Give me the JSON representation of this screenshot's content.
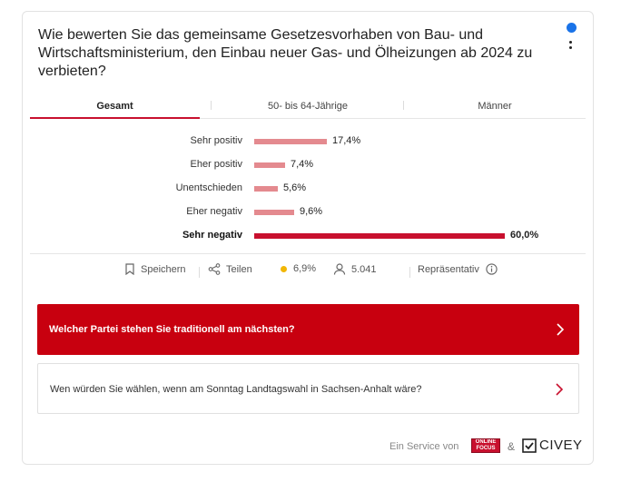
{
  "question": "Wie bewerten Sie das gemeinsame Gesetzesvorhaben von Bau- und Wirtschaftsministerium, den Einbau neuer Gas- und Ölheizungen ab 2024 zu verbieten?",
  "tabs": [
    {
      "label": "Gesamt",
      "active": true
    },
    {
      "label": "50- bis 64-Jährige",
      "active": false
    },
    {
      "label": "Männer",
      "active": false
    }
  ],
  "chart_data": {
    "type": "bar",
    "orientation": "horizontal",
    "categories": [
      "Sehr positiv",
      "Eher positiv",
      "Unentschieden",
      "Eher negativ",
      "Sehr negativ"
    ],
    "values": [
      17.4,
      7.4,
      5.6,
      9.6,
      60.0
    ],
    "value_labels": [
      "17,4%",
      "7,4%",
      "5,6%",
      "9,6%",
      "60,0%"
    ],
    "highlighted": "Sehr negativ",
    "colors": {
      "bar": "#e48a8f",
      "highlight": "#c8102e"
    }
  },
  "stats": {
    "save_label": "Speichern",
    "share_label": "Teilen",
    "error_margin": "6,9%",
    "participants": "5.041",
    "representative_label": "Repräsentativ"
  },
  "cta": {
    "primary": "Welcher Partei stehen Sie traditionell am nächsten?",
    "secondary": "Wen würden Sie wählen, wenn am Sonntag Landtagswahl in Sachsen-Anhalt wäre?"
  },
  "footer": {
    "service_text": "Ein Service von",
    "amp": "&",
    "partner_logo_text": [
      "ONLINE",
      "FOCUS"
    ],
    "brand": "CIVEY"
  },
  "colors": {
    "accent": "#c8000f",
    "dot_blue": "#1a73e8",
    "dot_yellow": "#f2b705"
  }
}
